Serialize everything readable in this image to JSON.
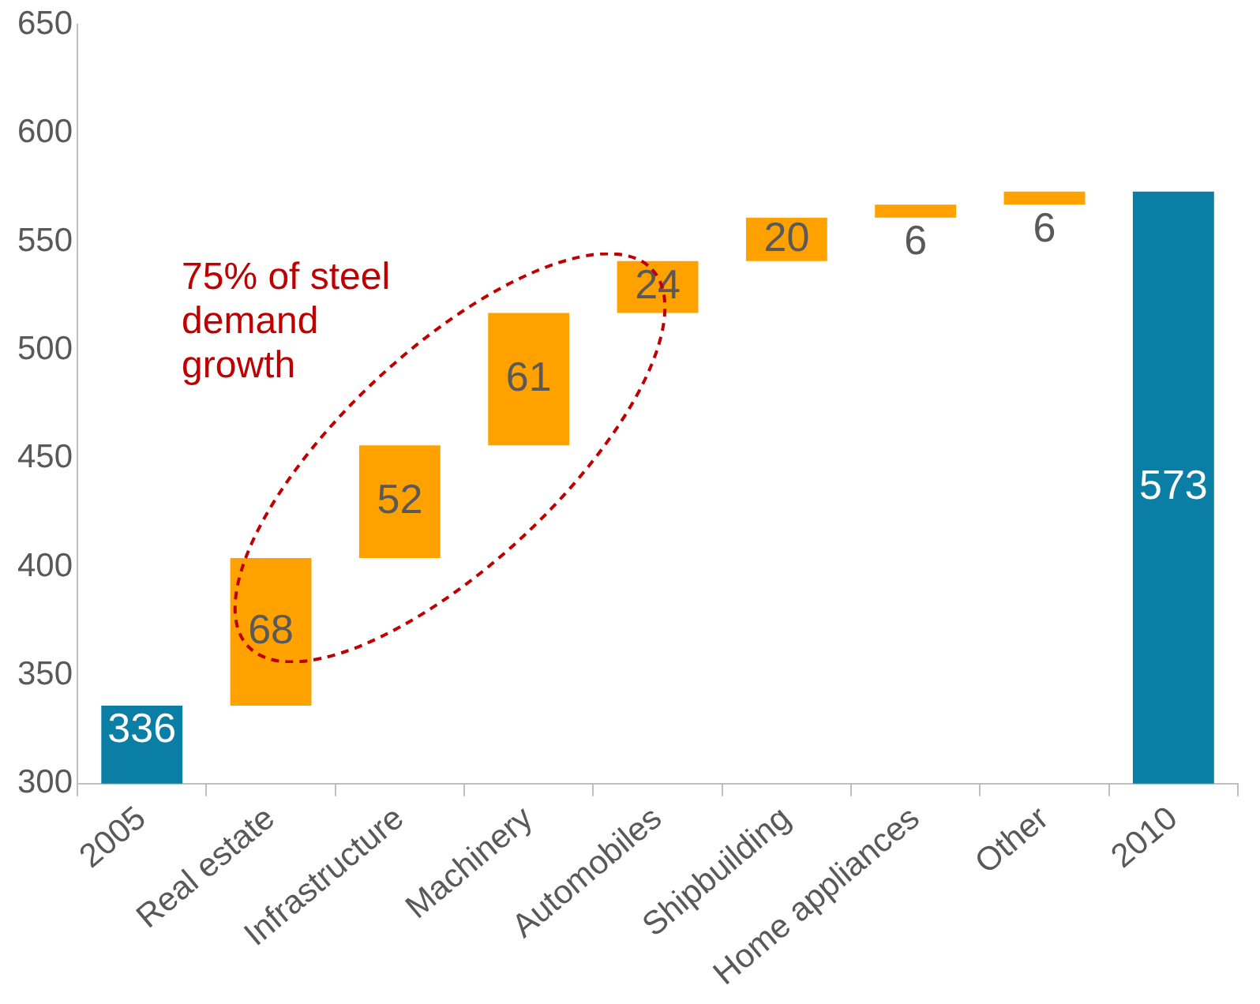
{
  "chart_data": {
    "type": "bar",
    "categories": [
      "2005",
      "Real estate",
      "Infrastructure",
      "Machinery",
      "Automobiles",
      "Shipbuilding",
      "Home appliances",
      "Other",
      "2010"
    ],
    "values": [
      336,
      68,
      52,
      61,
      24,
      20,
      6,
      6,
      573
    ],
    "base": [
      null,
      336,
      404,
      456,
      517,
      541,
      561,
      567,
      null
    ],
    "colors": [
      "#0a7ea4",
      "#ffa200",
      "#ffa200",
      "#ffa200",
      "#ffa200",
      "#ffa200",
      "#ffa200",
      "#ffa200",
      "#0a7ea4"
    ],
    "ylim": [
      300,
      650
    ],
    "yticks": [
      300,
      350,
      400,
      450,
      500,
      550,
      600,
      650
    ],
    "grid": false,
    "legend": false,
    "data_labels": true,
    "annotations": [
      "75% of steel\ndemand\ngrowth"
    ]
  }
}
